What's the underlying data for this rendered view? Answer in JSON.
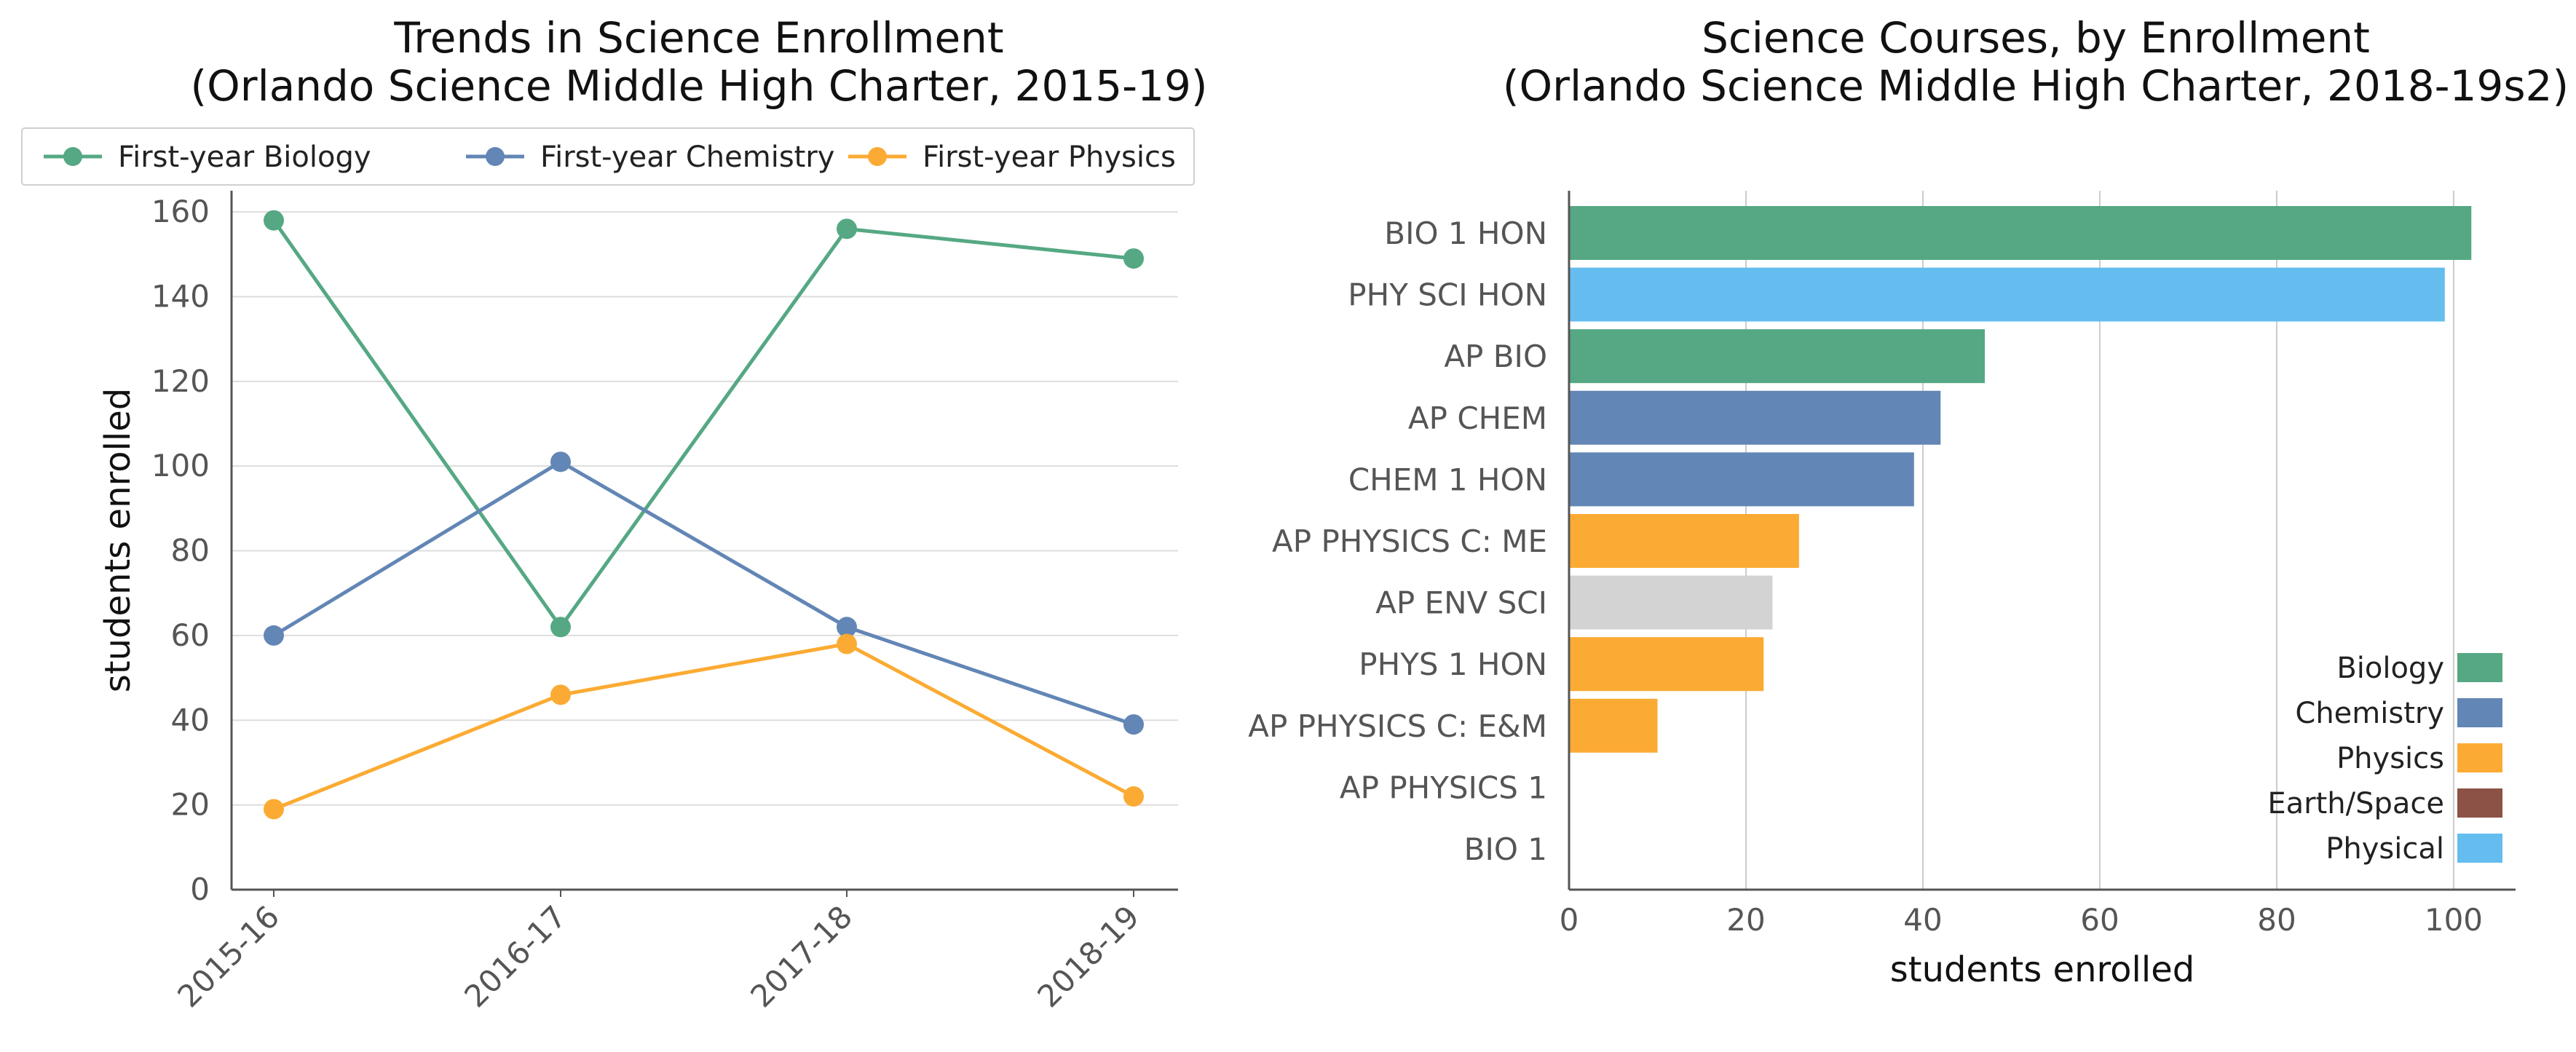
{
  "chart_data": [
    {
      "type": "line",
      "title": "Trends in Science Enrollment",
      "subtitle": "(Orlando Science Middle High Charter, 2015-19)",
      "xlabel": "",
      "ylabel": "students enrolled",
      "categories": [
        "2015-16",
        "2016-17",
        "2017-18",
        "2018-19"
      ],
      "ylim": [
        0,
        165
      ],
      "yticks": [
        0,
        20,
        40,
        60,
        80,
        100,
        120,
        140,
        160
      ],
      "grid": true,
      "legend": "top",
      "series": [
        {
          "name": "First-year Biology",
          "color": "#55a883",
          "values": [
            158,
            62,
            156,
            149
          ]
        },
        {
          "name": "First-year Chemistry",
          "color": "#6286b5",
          "values": [
            60,
            101,
            62,
            39
          ]
        },
        {
          "name": "First-year Physics",
          "color": "#fbab33",
          "values": [
            19,
            46,
            58,
            22
          ]
        }
      ]
    },
    {
      "type": "bar",
      "orientation": "horizontal",
      "title": "Science Courses, by Enrollment",
      "subtitle": "(Orlando Science Middle High Charter, 2018-19s2)",
      "xlabel": "students enrolled",
      "ylabel": "",
      "xlim": [
        0,
        107
      ],
      "xticks": [
        0,
        20,
        40,
        60,
        80,
        100
      ],
      "grid": true,
      "legend": "bottom-right",
      "categories": [
        "BIO 1 HON",
        "PHY SCI HON",
        "AP BIO",
        "AP CHEM",
        "CHEM 1 HON",
        "AP PHYSICS C: ME",
        "AP ENV SCI",
        "PHYS 1 HON",
        "AP PHYSICS C: E&M",
        "AP PHYSICS 1",
        "BIO 1"
      ],
      "values": [
        102,
        99,
        47,
        42,
        39,
        26,
        23,
        22,
        10,
        0,
        0
      ],
      "colors": [
        "#55a883",
        "#64bdee",
        "#55a883",
        "#6286b5",
        "#6286b5",
        "#fbab33",
        "#d3d3d3",
        "#fbab33",
        "#fbab33",
        "#fbab33",
        "#55a883"
      ],
      "legend_items": [
        {
          "name": "Biology",
          "color": "#55a883"
        },
        {
          "name": "Chemistry",
          "color": "#6286b5"
        },
        {
          "name": "Physics",
          "color": "#fbab33"
        },
        {
          "name": "Earth/Space",
          "color": "#8c5245"
        },
        {
          "name": "Physical",
          "color": "#64bdee"
        }
      ]
    }
  ]
}
